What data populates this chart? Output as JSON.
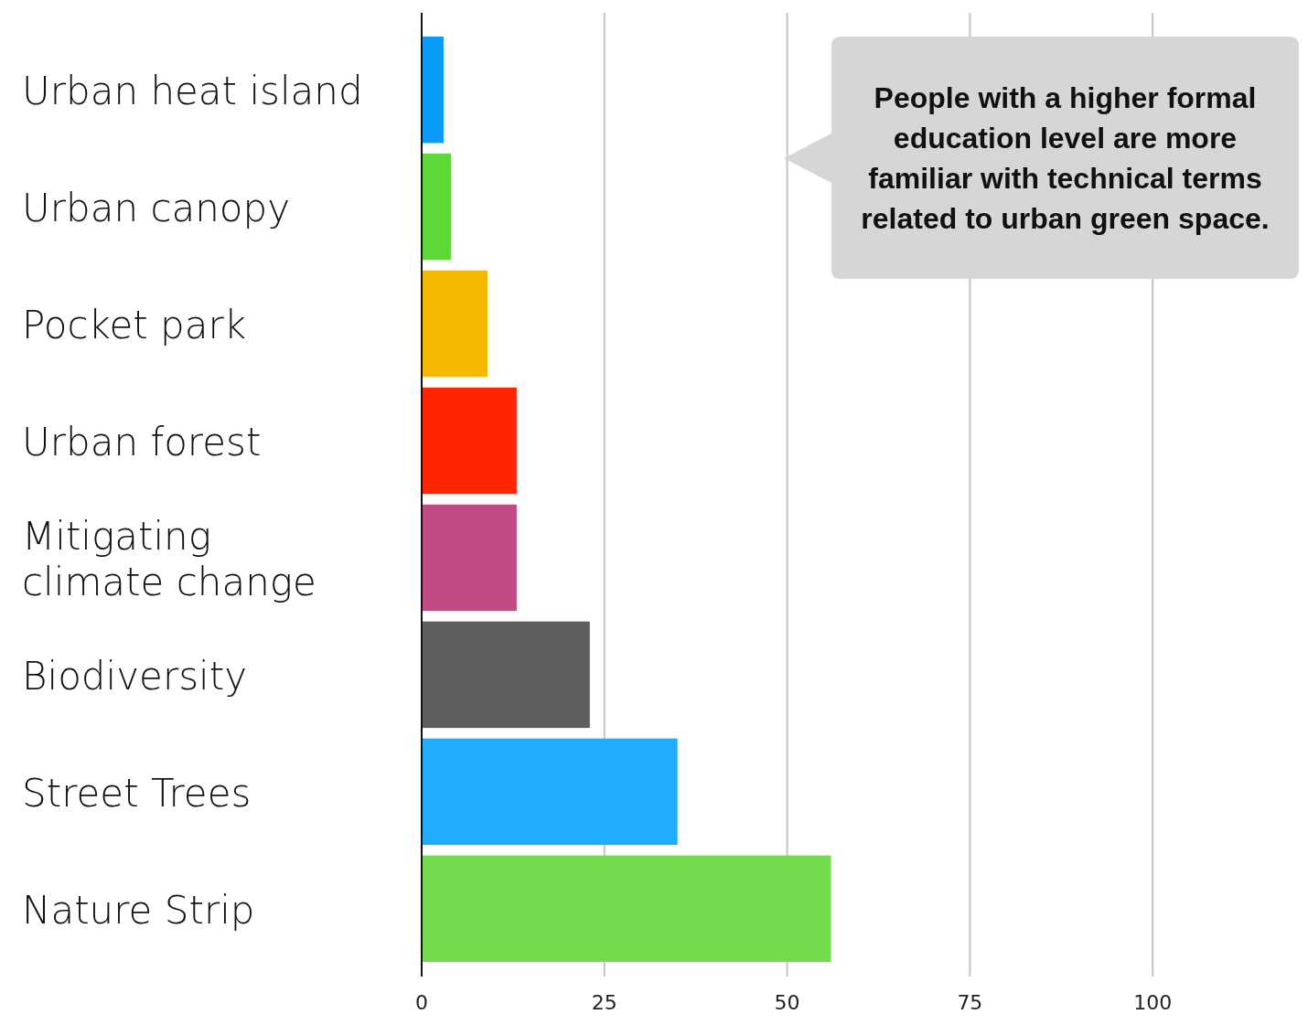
{
  "chart_data": {
    "type": "bar",
    "orientation": "horizontal",
    "categories": [
      "Urban heat island",
      "Urban canopy",
      "Pocket park",
      "Urban forest",
      "Mitigating climate change",
      "Biodiversity",
      "Street Trees",
      "Nature Strip"
    ],
    "values": [
      3,
      4,
      9,
      13,
      13,
      23,
      35,
      56
    ],
    "colors": [
      "#0a9cf8",
      "#5cd936",
      "#f5b800",
      "#ff2600",
      "#c24a85",
      "#5e5e5e",
      "#20adfd",
      "#73dc4d"
    ],
    "xlim": [
      0,
      120
    ],
    "xticks": [
      0,
      25,
      50,
      75,
      100
    ],
    "grid": "x",
    "annotations": [
      "People with a higher formal education level are more familiar with technical terms related to urban green space."
    ]
  }
}
